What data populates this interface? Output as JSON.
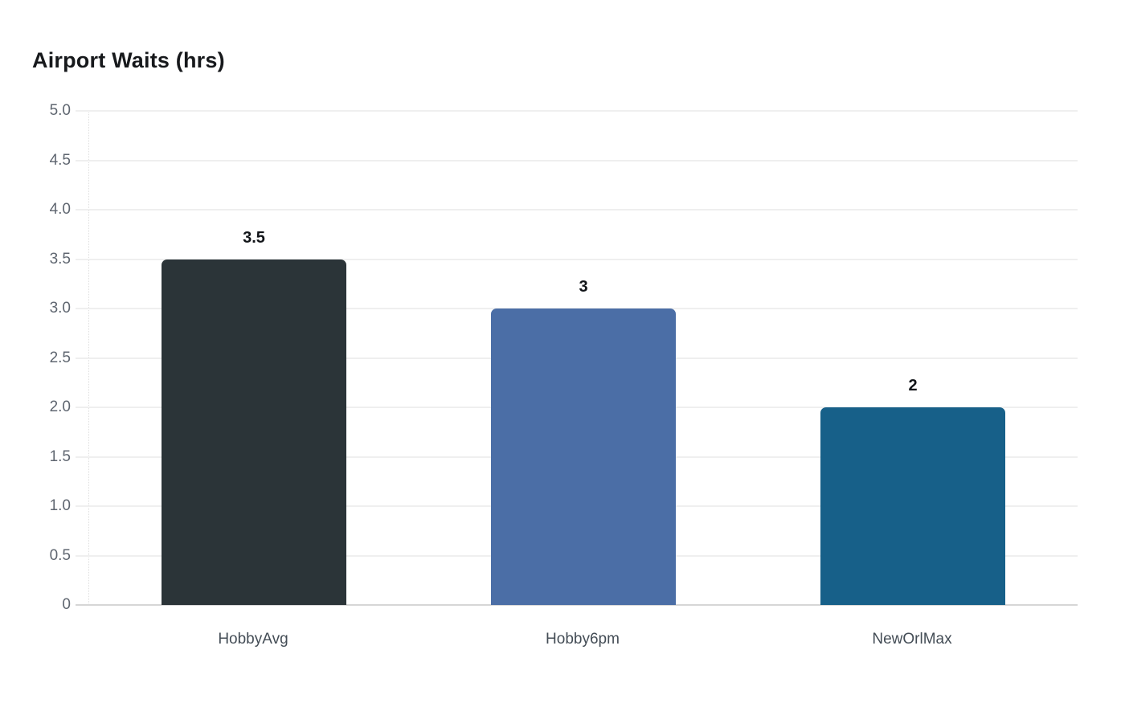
{
  "chart_data": {
    "type": "bar",
    "title": "Airport Waits (hrs)",
    "categories": [
      "HobbyAvg",
      "Hobby6pm",
      "NewOrlMax"
    ],
    "values": [
      3.5,
      3,
      2
    ],
    "value_labels": [
      "3.5",
      "3",
      "2"
    ],
    "bar_colors": [
      "#2b3438",
      "#4b6ea6",
      "#176089"
    ],
    "xlabel": "",
    "ylabel": "",
    "ylim": [
      0,
      5
    ],
    "ytick_step": 0.5,
    "ytick_labels": [
      "0",
      "0.5",
      "1.0",
      "1.5",
      "2.0",
      "2.5",
      "3.0",
      "3.5",
      "4.0",
      "4.5",
      "5.0"
    ],
    "grid": "horizontal-on",
    "legend": "none",
    "colors": {
      "background": "#ffffff",
      "title_text": "#17191c",
      "value_label_text": "#111418",
      "ytick_text": "#5f6670",
      "xtick_text": "#444d56",
      "gridline": "#efefef",
      "baseline": "#d6d6d6",
      "axis_line": "#dedede"
    }
  }
}
